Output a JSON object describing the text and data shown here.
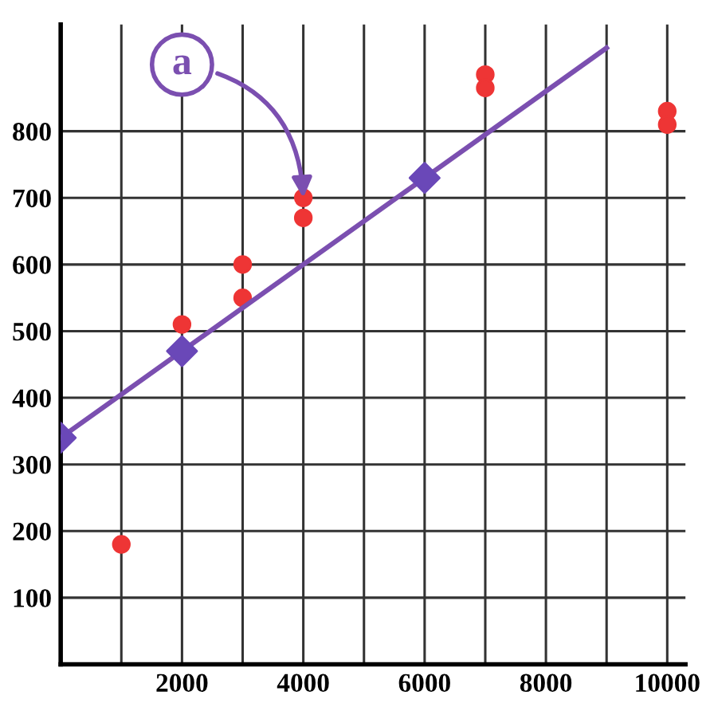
{
  "chart_data": {
    "type": "scatter",
    "series": [
      {
        "color": "#ee3535",
        "x": [
          1000,
          2000,
          3000,
          3000,
          4000,
          4000,
          7000,
          7000,
          10000,
          10000
        ],
        "values": [
          180,
          510,
          600,
          550,
          700,
          670,
          885,
          865,
          830,
          810
        ],
        "marker": "circle"
      },
      {
        "type": "line",
        "color": "#7b4fb0",
        "x": [
          0,
          9000
        ],
        "values": [
          340,
          925
        ],
        "marker": "none"
      },
      {
        "color": "#6a48b8",
        "x": [
          0,
          2000,
          6000
        ],
        "values": [
          340,
          470,
          730
        ],
        "marker": "diamond"
      }
    ],
    "xlim": [
      0,
      10300
    ],
    "ylim": [
      0,
      960
    ],
    "xticks": [
      {
        "value": 1000,
        "label": null
      },
      2000,
      {
        "value": 3000,
        "label": null
      },
      4000,
      {
        "value": 5000,
        "label": null
      },
      6000,
      {
        "value": 7000,
        "label": null
      },
      8000,
      {
        "value": 9000,
        "label": null
      },
      10000
    ],
    "yticks": [
      100,
      200,
      300,
      400,
      500,
      600,
      700,
      800
    ],
    "grid": true,
    "annotations": [
      {
        "text": "a",
        "x": 4000,
        "y": 700
      }
    ]
  }
}
